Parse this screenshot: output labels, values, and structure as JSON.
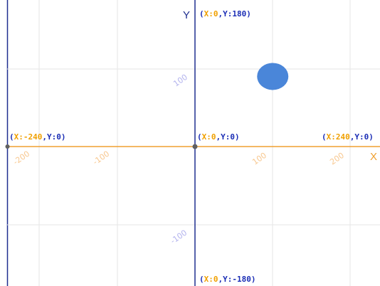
{
  "colors": {
    "grid": "#e6e6e6",
    "y_axis": "#1f2e8f",
    "x_axis": "#f0a030",
    "label_orange": "#f0a000",
    "label_blue": "#1a2db5",
    "tick_blue": "#b4b4ee",
    "tick_orange": "#f8c890",
    "origin_dot": "#606060",
    "sprite": "#4a86d9"
  },
  "axes": {
    "x_label": "X",
    "y_label": "Y"
  },
  "ranges": {
    "x": [
      -240,
      240
    ],
    "y": [
      -180,
      180
    ]
  },
  "x_ticks": [
    "-200",
    "-100",
    "100",
    "200"
  ],
  "y_ticks": [
    "100",
    "-100"
  ],
  "coordinate_labels": {
    "top": {
      "x_part": "X:0",
      "y_part": "Y:180"
    },
    "left": {
      "x_part": "X:-240",
      "y_part": "Y:0"
    },
    "origin": {
      "x_part": "X:0",
      "y_part": "Y:0"
    },
    "right": {
      "x_part": "X:240",
      "y_part": "Y:0"
    },
    "bottom": {
      "x_part": "X:0",
      "y_part": "Y:-180"
    }
  },
  "sprite": {
    "shape": "ellipse",
    "x": 100,
    "y": 90
  }
}
